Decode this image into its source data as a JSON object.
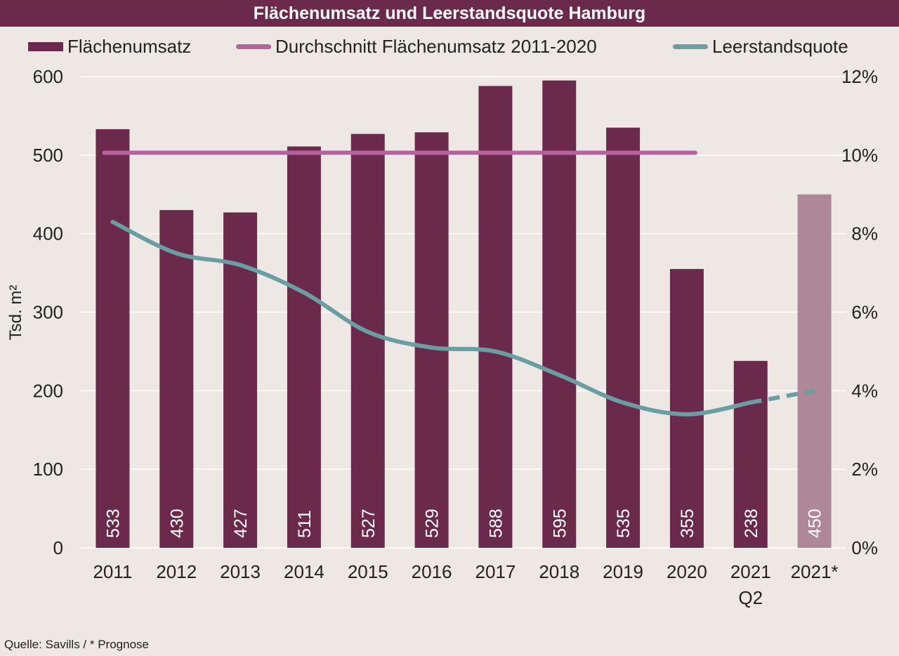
{
  "title": "Flächenumsatz und Leerstandsquote Hamburg",
  "legend": [
    {
      "label": "Flächenumsatz",
      "kind": "bar",
      "color": "#6b2a4c"
    },
    {
      "label": "Durchschnitt Flächenumsatz 2011-2020",
      "kind": "line",
      "color": "#b5629e"
    },
    {
      "label": "Leerstandsquote",
      "kind": "line",
      "color": "#6a9ea3"
    }
  ],
  "source": "Quelle: Savills / * Prognose",
  "colors": {
    "bar": "#6b2a4c",
    "bar_forecast": "#ae8798",
    "average": "#b5629e",
    "vacancy": "#6a9ea3",
    "grid": "#ffffff",
    "background": "#ede8e3"
  },
  "chart_data": {
    "type": "bar",
    "title": "Flächenumsatz und Leerstandsquote Hamburg",
    "ylabel": "Tsd. m²",
    "categories": [
      [
        "2011"
      ],
      [
        "2012"
      ],
      [
        "2013"
      ],
      [
        "2014"
      ],
      [
        "2015"
      ],
      [
        "2016"
      ],
      [
        "2017"
      ],
      [
        "2018"
      ],
      [
        "2019"
      ],
      [
        "2020"
      ],
      [
        "2021",
        "Q2"
      ],
      [
        "2021*"
      ]
    ],
    "ylim": [
      0,
      600
    ],
    "y_ticks": [
      "0",
      "100",
      "200",
      "300",
      "400",
      "500",
      "600"
    ],
    "y2lim": [
      0,
      12
    ],
    "y2_ticks": [
      "0%",
      "2%",
      "4%",
      "6%",
      "8%",
      "10%",
      "12%"
    ],
    "grid": true,
    "legend_position": "top",
    "series": [
      {
        "name": "Flächenumsatz",
        "type": "bar",
        "values": [
          533,
          430,
          427,
          511,
          527,
          529,
          588,
          595,
          535,
          355,
          238,
          450
        ],
        "labels": [
          "533",
          "430",
          "427",
          "511",
          "527",
          "529",
          "588",
          "595",
          "535",
          "355",
          "238",
          "450"
        ],
        "forecast_index": 11
      },
      {
        "name": "Durchschnitt Flächenumsatz 2011-2020",
        "type": "line",
        "values": [
          503,
          503,
          503,
          503,
          503,
          503,
          503,
          503,
          503,
          503,
          null,
          null
        ]
      },
      {
        "name": "Leerstandsquote",
        "type": "line",
        "axis": "right",
        "values": [
          8.3,
          7.5,
          7.2,
          6.5,
          5.5,
          5.1,
          5.0,
          4.4,
          3.7,
          3.4,
          3.7,
          4.0
        ],
        "dashed_from_index": 10
      }
    ]
  }
}
